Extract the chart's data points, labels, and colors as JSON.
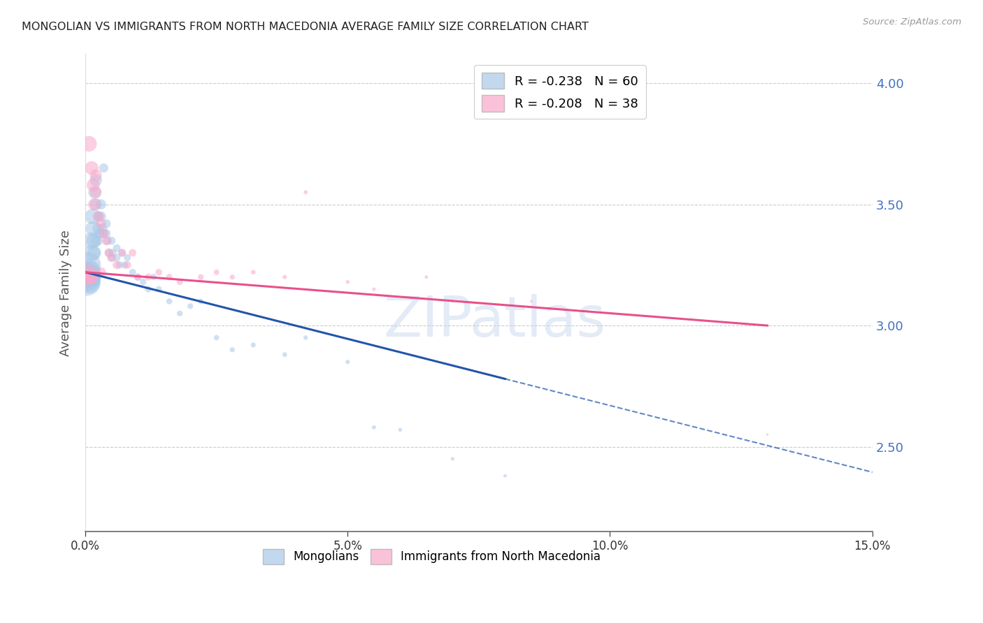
{
  "title": "MONGOLIAN VS IMMIGRANTS FROM NORTH MACEDONIA AVERAGE FAMILY SIZE CORRELATION CHART",
  "source": "Source: ZipAtlas.com",
  "ylabel": "Average Family Size",
  "xmin": 0.0,
  "xmax": 0.15,
  "ymin": 2.15,
  "ymax": 4.12,
  "right_yticks": [
    2.5,
    3.0,
    3.5,
    4.0
  ],
  "legend_mongolians": "Mongolians",
  "legend_macedonia": "Immigrants from North Macedonia",
  "r_mongolian": "-0.238",
  "n_mongolian": "60",
  "r_macedonia": "-0.208",
  "n_macedonia": "38",
  "color_mongolian": "#a8c8e8",
  "color_macedonia": "#f9a8c9",
  "color_trendline_mongolian": "#2255aa",
  "color_trendline_macedonia": "#e8508a",
  "watermark": "ZIPatlas",
  "mongolian_x": [
    0.0002,
    0.0003,
    0.0004,
    0.0005,
    0.0006,
    0.0007,
    0.0008,
    0.0009,
    0.001,
    0.0012,
    0.0013,
    0.0014,
    0.0015,
    0.0016,
    0.0017,
    0.0018,
    0.002,
    0.002,
    0.0022,
    0.0024,
    0.0025,
    0.0027,
    0.003,
    0.003,
    0.0032,
    0.0034,
    0.0035,
    0.004,
    0.004,
    0.0042,
    0.0045,
    0.005,
    0.005,
    0.0052,
    0.006,
    0.006,
    0.0065,
    0.007,
    0.0075,
    0.008,
    0.009,
    0.01,
    0.011,
    0.012,
    0.013,
    0.014,
    0.016,
    0.018,
    0.02,
    0.022,
    0.025,
    0.028,
    0.032,
    0.038,
    0.042,
    0.05,
    0.055,
    0.06,
    0.07,
    0.08
  ],
  "mongolian_y": [
    3.2,
    3.18,
    3.22,
    3.25,
    3.2,
    3.18,
    3.22,
    3.2,
    3.2,
    3.35,
    3.3,
    3.45,
    3.4,
    3.35,
    3.3,
    3.55,
    3.6,
    3.5,
    3.35,
    3.4,
    3.45,
    3.38,
    3.5,
    3.45,
    3.4,
    3.38,
    3.65,
    3.42,
    3.38,
    3.35,
    3.3,
    3.35,
    3.28,
    3.3,
    3.32,
    3.28,
    3.25,
    3.3,
    3.25,
    3.28,
    3.22,
    3.2,
    3.18,
    3.15,
    3.2,
    3.15,
    3.1,
    3.05,
    3.08,
    3.1,
    2.95,
    2.9,
    2.92,
    2.88,
    2.95,
    2.85,
    2.58,
    2.57,
    2.45,
    2.38
  ],
  "mongolian_sizes": [
    900,
    800,
    750,
    700,
    600,
    550,
    500,
    450,
    400,
    300,
    280,
    260,
    240,
    220,
    200,
    180,
    160,
    150,
    140,
    130,
    120,
    115,
    110,
    105,
    100,
    95,
    90,
    85,
    80,
    78,
    75,
    70,
    68,
    65,
    62,
    60,
    58,
    56,
    54,
    52,
    50,
    48,
    46,
    44,
    42,
    40,
    38,
    36,
    34,
    32,
    30,
    28,
    26,
    24,
    22,
    20,
    18,
    16,
    14,
    12
  ],
  "macedonia_x": [
    0.0003,
    0.0005,
    0.0007,
    0.0009,
    0.001,
    0.0012,
    0.0015,
    0.0017,
    0.002,
    0.002,
    0.0025,
    0.003,
    0.003,
    0.0035,
    0.004,
    0.0045,
    0.005,
    0.006,
    0.007,
    0.008,
    0.009,
    0.01,
    0.012,
    0.014,
    0.016,
    0.018,
    0.022,
    0.025,
    0.028,
    0.032,
    0.038,
    0.042,
    0.05,
    0.055,
    0.065,
    0.07,
    0.085,
    0.13
  ],
  "macedonia_y": [
    3.2,
    3.22,
    3.75,
    3.2,
    3.2,
    3.65,
    3.58,
    3.5,
    3.62,
    3.55,
    3.45,
    3.42,
    3.22,
    3.38,
    3.35,
    3.3,
    3.28,
    3.25,
    3.3,
    3.25,
    3.3,
    3.2,
    3.2,
    3.22,
    3.2,
    3.18,
    3.2,
    3.22,
    3.2,
    3.22,
    3.2,
    3.55,
    3.18,
    3.15,
    3.2,
    3.1,
    3.1,
    2.55
  ],
  "macedonia_sizes": [
    300,
    280,
    260,
    240,
    220,
    200,
    180,
    160,
    150,
    140,
    120,
    110,
    105,
    100,
    90,
    85,
    80,
    75,
    70,
    65,
    62,
    58,
    52,
    48,
    44,
    40,
    36,
    32,
    28,
    24,
    20,
    18,
    16,
    14,
    12,
    10,
    8,
    6
  ],
  "trendline_mong_x0": 0.0,
  "trendline_mong_y0": 3.22,
  "trendline_mong_x1": 0.08,
  "trendline_mong_y1": 2.78,
  "trendline_mong_xdash0": 0.08,
  "trendline_mong_xdash1": 0.15,
  "trendline_mac_x0": 0.0,
  "trendline_mac_y0": 3.22,
  "trendline_mac_x1": 0.13,
  "trendline_mac_y1": 3.0
}
